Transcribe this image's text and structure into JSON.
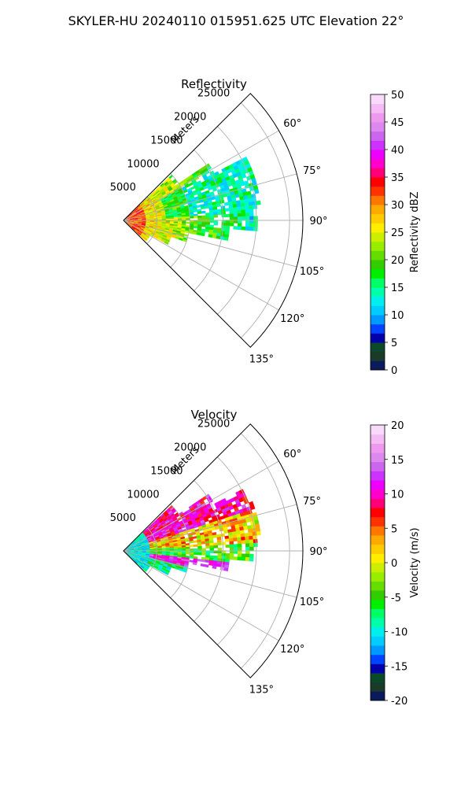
{
  "figure": {
    "title": "SKYLER-HU  20240110  015951.625 UTC Elevation 22°"
  },
  "chart_data": [
    {
      "type": "heatmap",
      "projection": "polar-sector",
      "title": "Reflectivity",
      "range_label": "Meters",
      "range_ticks": [
        "5000",
        "10000",
        "15000",
        "20000",
        "25000"
      ],
      "range_max": 27000,
      "angle_ticks": [
        "60°",
        "75°",
        "90°",
        "105°",
        "120°",
        "135°"
      ],
      "angle_range": [
        45,
        135
      ],
      "grid": true,
      "colorbar": {
        "label": "Reflectivity dBZ",
        "min": 0,
        "max": 50,
        "ticks": [
          "0",
          "5",
          "10",
          "15",
          "20",
          "25",
          "30",
          "35",
          "40",
          "45",
          "50"
        ],
        "colors": [
          "#0a1a5a",
          "#1a3a2a",
          "#0a4a2a",
          "#0000aa",
          "#0044ff",
          "#0099ff",
          "#00ccff",
          "#00eeee",
          "#00ffaa",
          "#00ff66",
          "#00ee00",
          "#33cc00",
          "#66dd00",
          "#99ee00",
          "#ccee00",
          "#ffee00",
          "#ffcc00",
          "#ffaa00",
          "#ff7700",
          "#ff3300",
          "#ff0000",
          "#ff0077",
          "#ff00cc",
          "#ee00ff",
          "#cc33ff",
          "#cc66ee",
          "#dd88ee",
          "#ee99ee",
          "#f4bbf4",
          "#fadafa"
        ]
      },
      "field": "reflectivity"
    },
    {
      "type": "heatmap",
      "projection": "polar-sector",
      "title": "Velocity",
      "range_label": "Meters",
      "range_ticks": [
        "5000",
        "10000",
        "15000",
        "20000",
        "25000"
      ],
      "range_max": 27000,
      "angle_ticks": [
        "60°",
        "75°",
        "90°",
        "105°",
        "120°",
        "135°"
      ],
      "angle_range": [
        45,
        135
      ],
      "grid": true,
      "colorbar": {
        "label": "Velocity (m/s)",
        "min": -20,
        "max": 20,
        "ticks": [
          "-20",
          "-15",
          "-10",
          "-5",
          "0",
          "5",
          "10",
          "15",
          "20"
        ],
        "colors": [
          "#0a1a5a",
          "#1a3a2a",
          "#0a4a2a",
          "#0000aa",
          "#0044ff",
          "#0099ff",
          "#00ccff",
          "#00eeee",
          "#00ffaa",
          "#00ff66",
          "#00ee00",
          "#33cc00",
          "#66dd00",
          "#99ee00",
          "#ccee00",
          "#ffee00",
          "#ffcc00",
          "#ffaa00",
          "#ff7700",
          "#ff3300",
          "#ff0000",
          "#ff0077",
          "#ff00cc",
          "#ee00ff",
          "#cc33ff",
          "#cc66ee",
          "#dd88ee",
          "#ee99ee",
          "#f4bbf4",
          "#fadafa"
        ]
      },
      "field": "velocity"
    }
  ]
}
